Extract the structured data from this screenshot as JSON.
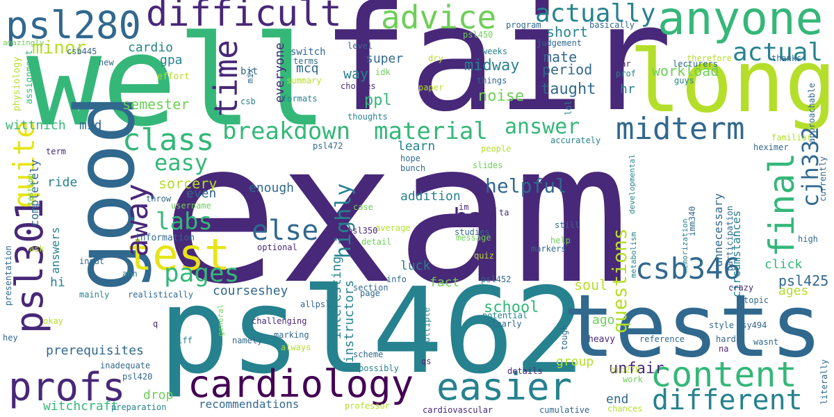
{
  "palette": {
    "purple": "#482878",
    "blue": "#31688e",
    "teal": "#26828e",
    "green": "#35b779",
    "lime": "#b5de2b",
    "yellow": "#e7e419",
    "lightgreen": "#6ece58",
    "darkpurple": "#440154"
  },
  "words": [
    {
      "text": "exam",
      "color": "#482878"
    },
    {
      "text": "fair",
      "color": "#482878"
    },
    {
      "text": "well",
      "color": "#35b779"
    },
    {
      "text": "psl462",
      "color": "#26828e"
    },
    {
      "text": "tests",
      "color": "#31688e"
    },
    {
      "text": "long",
      "color": "#b5de2b"
    },
    {
      "text": "good",
      "color": "#31688e"
    },
    {
      "text": "anyone",
      "color": "#35b779"
    },
    {
      "text": "difficult",
      "color": "#482878"
    },
    {
      "text": "psl280",
      "color": "#31688e"
    },
    {
      "text": "advice",
      "color": "#6ece58"
    },
    {
      "text": "actually",
      "color": "#26828e"
    },
    {
      "text": "psl301",
      "color": "#482878"
    },
    {
      "text": "quite",
      "color": "#e7e419"
    },
    {
      "text": "test",
      "color": "#e7e419"
    },
    {
      "text": "time",
      "color": "#482878"
    },
    {
      "text": "class",
      "color": "#35b779"
    },
    {
      "text": "away",
      "color": "#482878"
    },
    {
      "text": "breakdown",
      "color": "#35b779"
    },
    {
      "text": "material",
      "color": "#35b779"
    },
    {
      "text": "midterm",
      "color": "#31688e"
    },
    {
      "text": "final",
      "color": "#35b779"
    },
    {
      "text": "cjh332",
      "color": "#31688e"
    },
    {
      "text": "actual",
      "color": "#26828e"
    },
    {
      "text": "answer",
      "color": "#35b779"
    },
    {
      "text": "easy",
      "color": "#35b779"
    },
    {
      "text": "labs",
      "color": "#35b779"
    },
    {
      "text": "pages",
      "color": "#35b779"
    },
    {
      "text": "else",
      "color": "#31688e"
    },
    {
      "text": "profs",
      "color": "#482878"
    },
    {
      "text": "cardiology",
      "color": "#440154"
    },
    {
      "text": "easier",
      "color": "#26828e"
    },
    {
      "text": "content",
      "color": "#35b779"
    },
    {
      "text": "different",
      "color": "#26828e"
    },
    {
      "text": "csb346",
      "color": "#31688e"
    },
    {
      "text": "questions",
      "color": "#b5de2b"
    },
    {
      "text": "highly",
      "color": "#26828e"
    },
    {
      "text": "bad",
      "color": "#482878"
    },
    {
      "text": "helpful",
      "color": "#31688e"
    },
    {
      "text": "minor",
      "color": "#b5de2b"
    },
    {
      "text": "cardio",
      "color": "#26828e"
    },
    {
      "text": "gpa",
      "color": "#26828e"
    },
    {
      "text": "semester",
      "color": "#6ece58"
    },
    {
      "text": "super",
      "color": "#31688e"
    },
    {
      "text": "mcq",
      "color": "#31688e"
    },
    {
      "text": "way",
      "color": "#26828e"
    },
    {
      "text": "ppl",
      "color": "#35b779"
    },
    {
      "text": "midway",
      "color": "#26828e"
    },
    {
      "text": "period",
      "color": "#31688e"
    },
    {
      "text": "mate",
      "color": "#31688e"
    },
    {
      "text": "taught",
      "color": "#31688e"
    },
    {
      "text": "noise",
      "color": "#6ece58"
    },
    {
      "text": "workload",
      "color": "#6ece58"
    },
    {
      "text": "short",
      "color": "#26828e"
    },
    {
      "text": "everyone",
      "color": "#482878"
    },
    {
      "text": "hr",
      "color": "#26828e"
    },
    {
      "text": "wittnich",
      "color": "#35b779"
    },
    {
      "text": "mid",
      "color": "#31688e"
    },
    {
      "text": "sorcery",
      "color": "#b5de2b"
    },
    {
      "text": "enough",
      "color": "#31688e"
    },
    {
      "text": "completely",
      "color": "#31688e"
    },
    {
      "text": "ride",
      "color": "#26828e"
    },
    {
      "text": "even",
      "color": "#31688e"
    },
    {
      "text": "addition",
      "color": "#26828e"
    },
    {
      "text": "learn",
      "color": "#26828e"
    },
    {
      "text": "luck",
      "color": "#26828e"
    },
    {
      "text": "fact",
      "color": "#6ece58"
    },
    {
      "text": "interesting",
      "color": "#26828e"
    },
    {
      "text": "instructors",
      "color": "#26828e"
    },
    {
      "text": "answers",
      "color": "#26828e"
    },
    {
      "text": "hi",
      "color": "#26828e"
    },
    {
      "text": "courseshey",
      "color": "#31688e"
    },
    {
      "text": "school",
      "color": "#35b779"
    },
    {
      "text": "soul",
      "color": "#b5de2b"
    },
    {
      "text": "ago",
      "color": "#6ece58"
    },
    {
      "text": "ages",
      "color": "#b5de2b"
    },
    {
      "text": "psl425",
      "color": "#31688e"
    },
    {
      "text": "click",
      "color": "#35b779"
    },
    {
      "text": "circumstances",
      "color": "#26828e"
    },
    {
      "text": "unnecessary",
      "color": "#31688e"
    },
    {
      "text": "prerequisites",
      "color": "#31688e"
    },
    {
      "text": "recommendations",
      "color": "#31688e"
    },
    {
      "text": "witchcraft",
      "color": "#35b779"
    },
    {
      "text": "drop",
      "color": "#6ece58"
    },
    {
      "text": "group",
      "color": "#b5de2b"
    },
    {
      "text": "unfair",
      "color": "#482878"
    },
    {
      "text": "end",
      "color": "#31688e"
    },
    {
      "text": "amazingly",
      "color": "#6ece58"
    },
    {
      "text": "csb445",
      "color": "#31688e"
    },
    {
      "text": "new",
      "color": "#31688e"
    },
    {
      "text": "bit",
      "color": "#31688e"
    },
    {
      "text": "switch",
      "color": "#31688e"
    },
    {
      "text": "terms",
      "color": "#31688e"
    },
    {
      "text": "summary",
      "color": "#b5de2b"
    },
    {
      "text": "formats",
      "color": "#26828e"
    },
    {
      "text": "mix",
      "color": "#31688e"
    },
    {
      "text": "csb",
      "color": "#26828e"
    },
    {
      "text": "effort",
      "color": "#b5de2b"
    },
    {
      "text": "assignment",
      "color": "#35b779"
    },
    {
      "text": "physiology",
      "color": "#b5de2b"
    },
    {
      "text": "level",
      "color": "#31688e"
    },
    {
      "text": "idk",
      "color": "#6ece58"
    },
    {
      "text": "choices",
      "color": "#482878"
    },
    {
      "text": "thoughts",
      "color": "#26828e"
    },
    {
      "text": "dry",
      "color": "#b5de2b"
    },
    {
      "text": "paper",
      "color": "#b5de2b"
    },
    {
      "text": "psl450",
      "color": "#6ece58"
    },
    {
      "text": "program",
      "color": "#31688e"
    },
    {
      "text": "weeks",
      "color": "#26828e"
    },
    {
      "text": "things",
      "color": "#31688e"
    },
    {
      "text": "judgement",
      "color": "#31688e"
    },
    {
      "text": "basically",
      "color": "#31688e"
    },
    {
      "text": "far",
      "color": "#482878"
    },
    {
      "text": "prof",
      "color": "#26828e"
    },
    {
      "text": "lecturers",
      "color": "#31688e"
    },
    {
      "text": "therefore",
      "color": "#b5de2b"
    },
    {
      "text": "thanks",
      "color": "#31688e"
    },
    {
      "text": "guys",
      "color": "#26828e"
    },
    {
      "text": "lol",
      "color": "#26828e"
    },
    {
      "text": "approachable",
      "color": "#31688e"
    },
    {
      "text": "familiar",
      "color": "#b5de2b"
    },
    {
      "text": "heximer",
      "color": "#31688e"
    },
    {
      "text": "currently",
      "color": "#31688e"
    },
    {
      "text": "accurately",
      "color": "#26828e"
    },
    {
      "text": "people",
      "color": "#b5de2b"
    },
    {
      "text": "psl472",
      "color": "#31688e"
    },
    {
      "text": "term",
      "color": "#482878"
    },
    {
      "text": "hope",
      "color": "#31688e"
    },
    {
      "text": "bunch",
      "color": "#31688e"
    },
    {
      "text": "slides",
      "color": "#6ece58"
    },
    {
      "text": "developmental",
      "color": "#26828e"
    },
    {
      "text": "metabolism",
      "color": "#26828e"
    },
    {
      "text": "memorization",
      "color": "#26828e"
    },
    {
      "text": "imm340",
      "color": "#31688e"
    },
    {
      "text": "participation",
      "color": "#31688e"
    },
    {
      "text": "high",
      "color": "#31688e"
    },
    {
      "text": "literally",
      "color": "#31688e"
    },
    {
      "text": "testing",
      "color": "#6ece58"
    },
    {
      "text": "username",
      "color": "#6ece58"
    },
    {
      "text": "throw",
      "color": "#31688e"
    },
    {
      "text": "case",
      "color": "#6ece58"
    },
    {
      "text": "average",
      "color": "#b5de2b"
    },
    {
      "text": "im",
      "color": "#482878"
    },
    {
      "text": "ta",
      "color": "#482878"
    },
    {
      "text": "detail",
      "color": "#6ece58"
    },
    {
      "text": "studies",
      "color": "#31688e"
    },
    {
      "text": "message",
      "color": "#6ece58"
    },
    {
      "text": "help",
      "color": "#6ece58"
    },
    {
      "text": "still",
      "color": "#31688e"
    },
    {
      "text": "markers",
      "color": "#31688e"
    },
    {
      "text": "quiz",
      "color": "#b5de2b"
    },
    {
      "text": "information",
      "color": "#31688e"
    },
    {
      "text": "optional",
      "color": "#482878"
    },
    {
      "text": "psl350",
      "color": "#482878"
    },
    {
      "text": "ask",
      "color": "#b5de2b"
    },
    {
      "text": "input",
      "color": "#31688e"
    },
    {
      "text": "ahh",
      "color": "#26828e"
    },
    {
      "text": "presentation",
      "color": "#31688e"
    },
    {
      "text": "mainly",
      "color": "#26828e"
    },
    {
      "text": "realistically",
      "color": "#31688e"
    },
    {
      "text": "section",
      "color": "#31688e"
    },
    {
      "text": "info",
      "color": "#31688e"
    },
    {
      "text": "page",
      "color": "#31688e"
    },
    {
      "text": "psl452",
      "color": "#31688e"
    },
    {
      "text": "allpsl",
      "color": "#31688e"
    },
    {
      "text": "crazy",
      "color": "#482878"
    },
    {
      "text": "topic",
      "color": "#31688e"
    },
    {
      "text": "okay",
      "color": "#b5de2b"
    },
    {
      "text": "general",
      "color": "#6ece58"
    },
    {
      "text": "q",
      "color": "#482878"
    },
    {
      "text": "challenging",
      "color": "#482878"
    },
    {
      "text": "marking",
      "color": "#31688e"
    },
    {
      "text": "namely",
      "color": "#31688e"
    },
    {
      "text": "always",
      "color": "#b5de2b"
    },
    {
      "text": "multiple",
      "color": "#26828e"
    },
    {
      "text": "potential",
      "color": "#26828e"
    },
    {
      "text": "clearly",
      "color": "#31688e"
    },
    {
      "text": "tough",
      "color": "#31688e"
    },
    {
      "text": "heavy",
      "color": "#482878"
    },
    {
      "text": "reference",
      "color": "#31688e"
    },
    {
      "text": "style",
      "color": "#31688e"
    },
    {
      "text": "psy494",
      "color": "#31688e"
    },
    {
      "text": "wasnt",
      "color": "#31688e"
    },
    {
      "text": "hard",
      "color": "#31688e"
    },
    {
      "text": "na",
      "color": "#482878"
    },
    {
      "text": "hey",
      "color": "#31688e"
    },
    {
      "text": "diff",
      "color": "#26828e"
    },
    {
      "text": "scheme",
      "color": "#31688e"
    },
    {
      "text": "possibly",
      "color": "#26828e"
    },
    {
      "text": "qs",
      "color": "#482878"
    },
    {
      "text": "inadequate",
      "color": "#31688e"
    },
    {
      "text": "psl420",
      "color": "#31688e"
    },
    {
      "text": "details",
      "color": "#482878"
    },
    {
      "text": "bio270",
      "color": "#b5de2b"
    },
    {
      "text": "work",
      "color": "#6ece58"
    },
    {
      "text": "chances",
      "color": "#b5de2b"
    },
    {
      "text": "preparation",
      "color": "#26828e"
    },
    {
      "text": "professor",
      "color": "#b5de2b"
    },
    {
      "text": "cardiovascular",
      "color": "#482878"
    },
    {
      "text": "cumulative",
      "color": "#31688e"
    }
  ]
}
